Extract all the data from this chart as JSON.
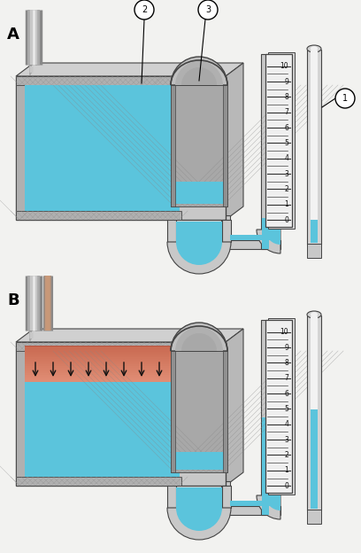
{
  "bg": "#f2f2f0",
  "blue": "#5bc4dc",
  "blue_mid": "#4aaec8",
  "blue_dark": "#3898b4",
  "gray1": "#c8c8c8",
  "gray2": "#b0b0b0",
  "gray3": "#989898",
  "gray4": "#808080",
  "gray5": "#d8d8d8",
  "gray6": "#e8e8e8",
  "gray_inner": "#a8a8a8",
  "gray_hatch": "#909090",
  "pink": "#e09080",
  "orange": "#d07050",
  "outline": "#444444",
  "scale_ticks": [
    0,
    1,
    2,
    3,
    4,
    5,
    6,
    7,
    8,
    9,
    10
  ],
  "white": "#ffffff",
  "black": "#111111"
}
